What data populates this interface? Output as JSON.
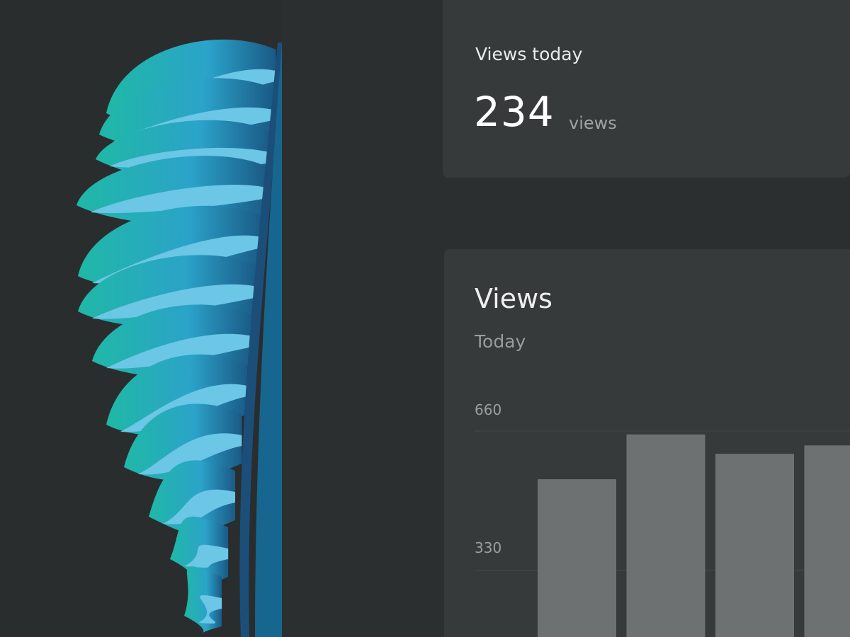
{
  "views_today": {
    "label": "Views today",
    "value": "234",
    "unit": "views"
  },
  "views_chart": {
    "title": "Views",
    "subtitle": "Today"
  },
  "colors": {
    "background": "#2b2e2f",
    "card": "#363a3b",
    "bar": "#6d7172",
    "leaf_teal": "#1fb5a8",
    "leaf_blue": "#1b5f8c"
  },
  "chart_data": {
    "type": "bar",
    "title": "Views",
    "subtitle": "Today",
    "y_ticks": [
      "660",
      "330"
    ],
    "values": [
      546,
      652,
      606,
      626
    ],
    "ylim": [
      0,
      660
    ],
    "grid": true
  }
}
